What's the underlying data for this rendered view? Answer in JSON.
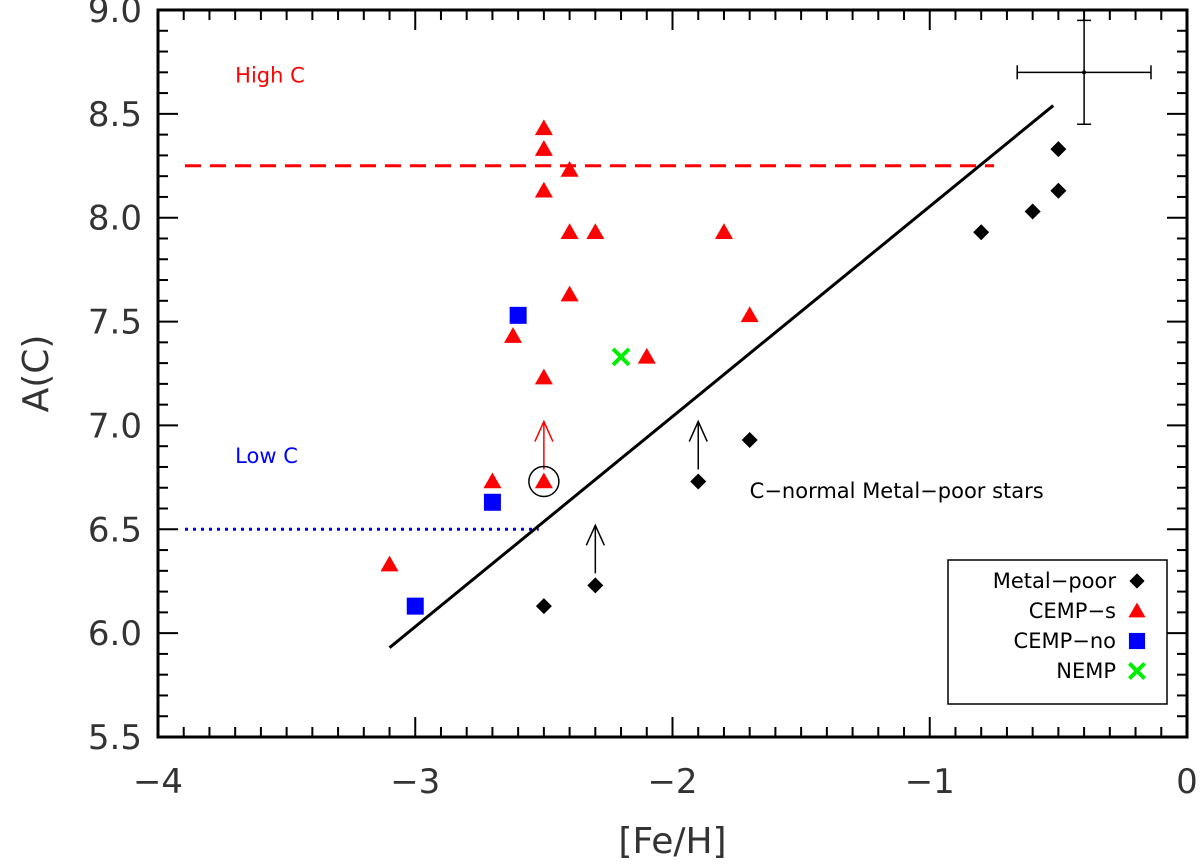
{
  "chart_data": {
    "type": "scatter",
    "title": "",
    "xlabel": "[Fe/H]",
    "ylabel": "A(C)",
    "xlim": [
      -4.0,
      0.0
    ],
    "ylim": [
      5.5,
      9.0
    ],
    "grid": false,
    "legend_position": "bottom-right",
    "x_ticks": [
      {
        "value": -4,
        "label": "−4"
      },
      {
        "value": -3,
        "label": "−3"
      },
      {
        "value": -2,
        "label": "−2"
      },
      {
        "value": -1,
        "label": "−1"
      },
      {
        "value": 0,
        "label": "0"
      }
    ],
    "y_ticks": [
      {
        "value": 5.5,
        "label": "5.5"
      },
      {
        "value": 6.0,
        "label": "6.0"
      },
      {
        "value": 6.5,
        "label": "6.5"
      },
      {
        "value": 7.0,
        "label": "7.0"
      },
      {
        "value": 7.5,
        "label": "7.5"
      },
      {
        "value": 8.0,
        "label": "8.0"
      },
      {
        "value": 8.5,
        "label": "8.5"
      },
      {
        "value": 9.0,
        "label": "9.0"
      }
    ],
    "series": [
      {
        "name": "Metal-poor",
        "marker": "diamond",
        "color": "#000000",
        "points": [
          [
            -2.5,
            6.13
          ],
          [
            -2.3,
            6.23
          ],
          [
            -1.9,
            6.73
          ],
          [
            -1.7,
            6.93
          ],
          [
            -0.8,
            7.93
          ],
          [
            -0.6,
            8.03
          ],
          [
            -0.5,
            8.13
          ],
          [
            -0.5,
            8.33
          ]
        ]
      },
      {
        "name": "CEMP-s",
        "marker": "triangle",
        "color": "#ff0000",
        "points": [
          [
            -3.1,
            6.33
          ],
          [
            -2.7,
            6.73
          ],
          [
            -2.62,
            7.43
          ],
          [
            -2.5,
            8.43
          ],
          [
            -2.5,
            8.33
          ],
          [
            -2.5,
            8.13
          ],
          [
            -2.5,
            7.23
          ],
          [
            -2.5,
            6.73
          ],
          [
            -2.4,
            8.23
          ],
          [
            -2.4,
            7.93
          ],
          [
            -2.4,
            7.63
          ],
          [
            -2.3,
            7.93
          ],
          [
            -2.1,
            7.33
          ],
          [
            -1.8,
            7.93
          ],
          [
            -1.7,
            7.53
          ]
        ]
      },
      {
        "name": "CEMP-no",
        "marker": "square",
        "color": "#0000ff",
        "points": [
          [
            -3.0,
            6.13
          ],
          [
            -2.7,
            6.63
          ],
          [
            -2.6,
            7.53
          ]
        ]
      },
      {
        "name": "NEMP",
        "marker": "cross",
        "color": "#00ee00",
        "points": [
          [
            -2.2,
            7.33
          ]
        ]
      }
    ],
    "lower_limits": [
      {
        "x": -2.3,
        "y": 6.23,
        "color": "#000000"
      },
      {
        "x": -1.9,
        "y": 6.73,
        "color": "#000000"
      },
      {
        "x": -2.5,
        "y": 6.73,
        "color": "#ff0000"
      }
    ],
    "circled_point": {
      "x": -2.5,
      "y": 6.73
    },
    "fit_line": {
      "x": [
        -3.1,
        -0.52
      ],
      "y": [
        5.93,
        8.54
      ],
      "color": "#000000"
    },
    "reference_lines": [
      {
        "label": "High C",
        "y": 8.25,
        "x_range": [
          -4.0,
          -0.75
        ],
        "style": "dashed",
        "color": "#ff0000"
      },
      {
        "label": "Low C",
        "y": 6.5,
        "x_range": [
          -4.0,
          -2.52
        ],
        "style": "dotted",
        "color": "#0000ff"
      }
    ],
    "error_bar": {
      "x": -0.4,
      "y": 8.7,
      "xerr": 0.26,
      "yerr": 0.25
    },
    "annotations": [
      {
        "text": "High C",
        "x": -3.7,
        "y": 8.65,
        "color": "#ff0000"
      },
      {
        "text": "Low C",
        "x": -3.7,
        "y": 6.82,
        "color": "#0000ff"
      },
      {
        "text": "C−normal Metal−poor stars",
        "x": -1.7,
        "y": 6.65,
        "color": "#000000"
      }
    ]
  },
  "legend": {
    "entries": [
      {
        "label": "Metal−poor",
        "marker": "diamond",
        "color": "#000000"
      },
      {
        "label": "CEMP−s",
        "marker": "triangle",
        "color": "#ff0000"
      },
      {
        "label": "CEMP−no",
        "marker": "square",
        "color": "#0000ff"
      },
      {
        "label": "NEMP",
        "marker": "cross",
        "color": "#00ee00"
      }
    ]
  }
}
